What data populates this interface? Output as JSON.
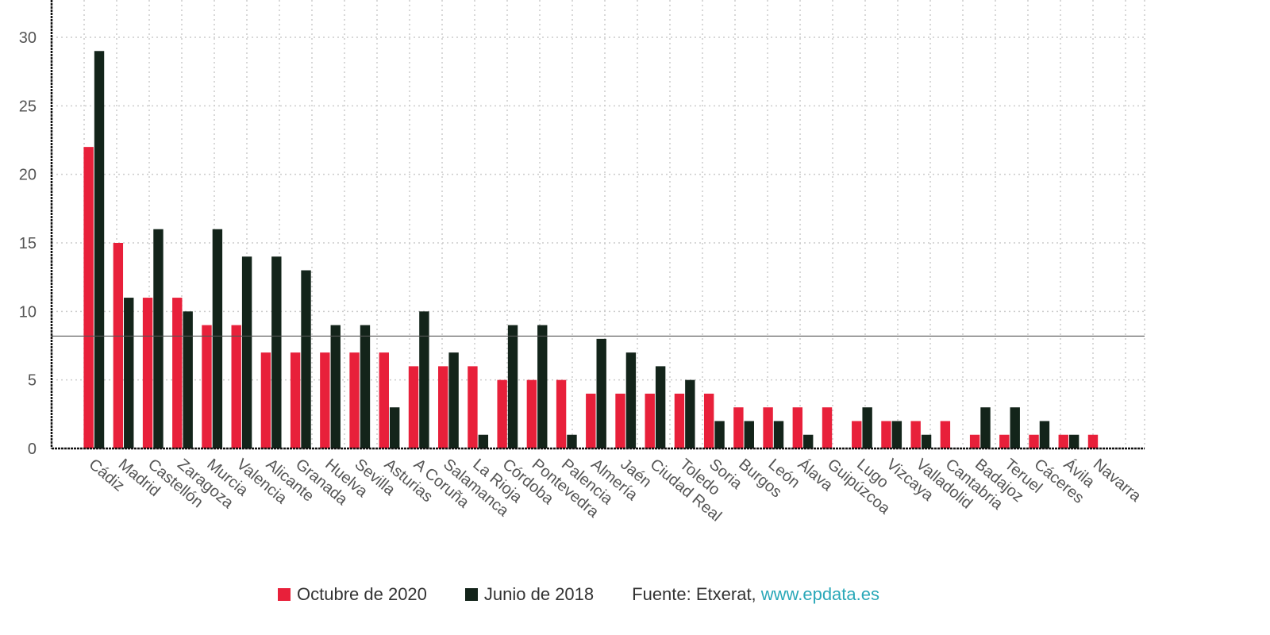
{
  "chart_data": {
    "type": "bar",
    "categories": [
      "Cádiz",
      "Madrid",
      "Castellón",
      "Zaragoza",
      "Murcia",
      "Valencia",
      "Alicante",
      "Granada",
      "Huelva",
      "Sevilla",
      "Asturias",
      "A Coruña",
      "Salamanca",
      "La Rioja",
      "Córdoba",
      "Pontevedra",
      "Palencia",
      "Almería",
      "Jaén",
      "Ciudad Real",
      "Toledo",
      "Soria",
      "Burgos",
      "León",
      "Álava",
      "Guipúzcoa",
      "Lugo",
      "Vizcaya",
      "Valladolid",
      "Cantabria",
      "Badajoz",
      "Teruel",
      "Cáceres",
      "Ávila",
      "Navarra"
    ],
    "series": [
      {
        "name": "Octubre de 2020",
        "color": "#e8203a",
        "values": [
          22,
          15,
          11,
          11,
          9,
          9,
          7,
          7,
          7,
          7,
          7,
          6,
          6,
          6,
          5,
          5,
          5,
          4,
          4,
          4,
          4,
          4,
          3,
          3,
          3,
          3,
          2,
          2,
          2,
          2,
          1,
          1,
          1,
          1,
          1
        ]
      },
      {
        "name": "Junio de 2018",
        "color": "#13241a",
        "values": [
          29,
          11,
          16,
          10,
          16,
          14,
          14,
          13,
          9,
          9,
          3,
          10,
          7,
          1,
          9,
          9,
          1,
          8,
          7,
          6,
          5,
          2,
          2,
          2,
          1,
          0,
          3,
          2,
          1,
          0,
          3,
          3,
          2,
          1,
          0
        ]
      }
    ],
    "yticks": [
      0,
      5,
      10,
      15,
      20,
      25,
      30
    ],
    "ylim": [
      0,
      30
    ],
    "reference_line": 8.2,
    "grid": true,
    "legend_position": "bottom",
    "source_prefix": "Fuente: Etxerat, ",
    "source_link": "www.epdata.es"
  }
}
